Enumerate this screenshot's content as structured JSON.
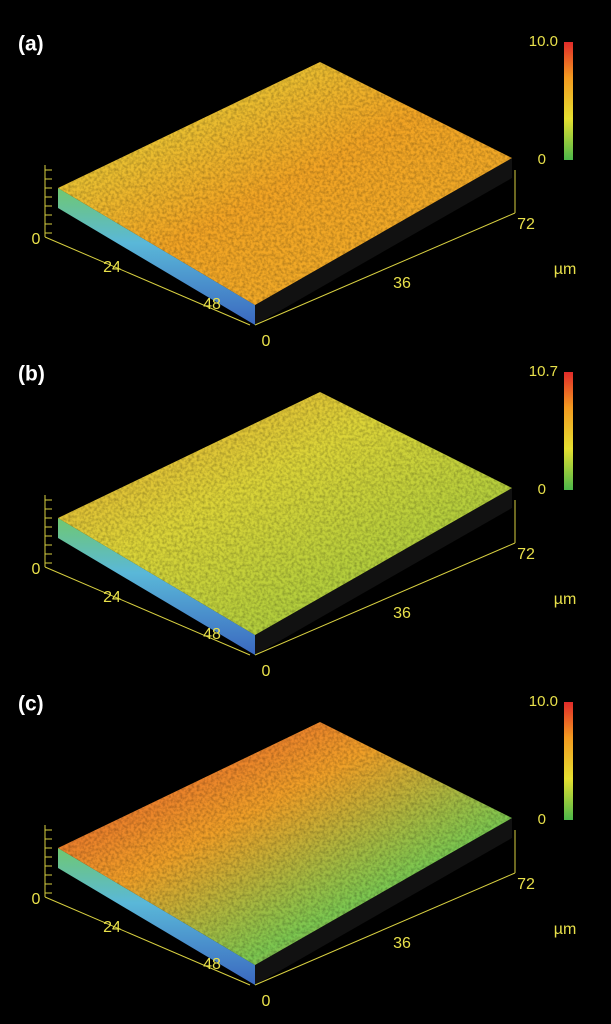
{
  "panels": [
    {
      "label": "(a)",
      "colorbar": {
        "max": "10.0",
        "min": "0"
      },
      "axis": {
        "z_zero": "0",
        "x_ticks": [
          "24",
          "48"
        ],
        "y_ticks": [
          "0",
          "36",
          "72"
        ],
        "unit": "µm"
      }
    },
    {
      "label": "(b)",
      "colorbar": {
        "max": "10.7",
        "min": "0"
      },
      "axis": {
        "z_zero": "0",
        "x_ticks": [
          "24",
          "48"
        ],
        "y_ticks": [
          "0",
          "36",
          "72"
        ],
        "unit": "µm"
      }
    },
    {
      "label": "(c)",
      "colorbar": {
        "max": "10.0",
        "min": "0"
      },
      "axis": {
        "z_zero": "0",
        "x_ticks": [
          "24",
          "48"
        ],
        "y_ticks": [
          "0",
          "36",
          "72"
        ],
        "unit": "µm"
      }
    }
  ]
}
